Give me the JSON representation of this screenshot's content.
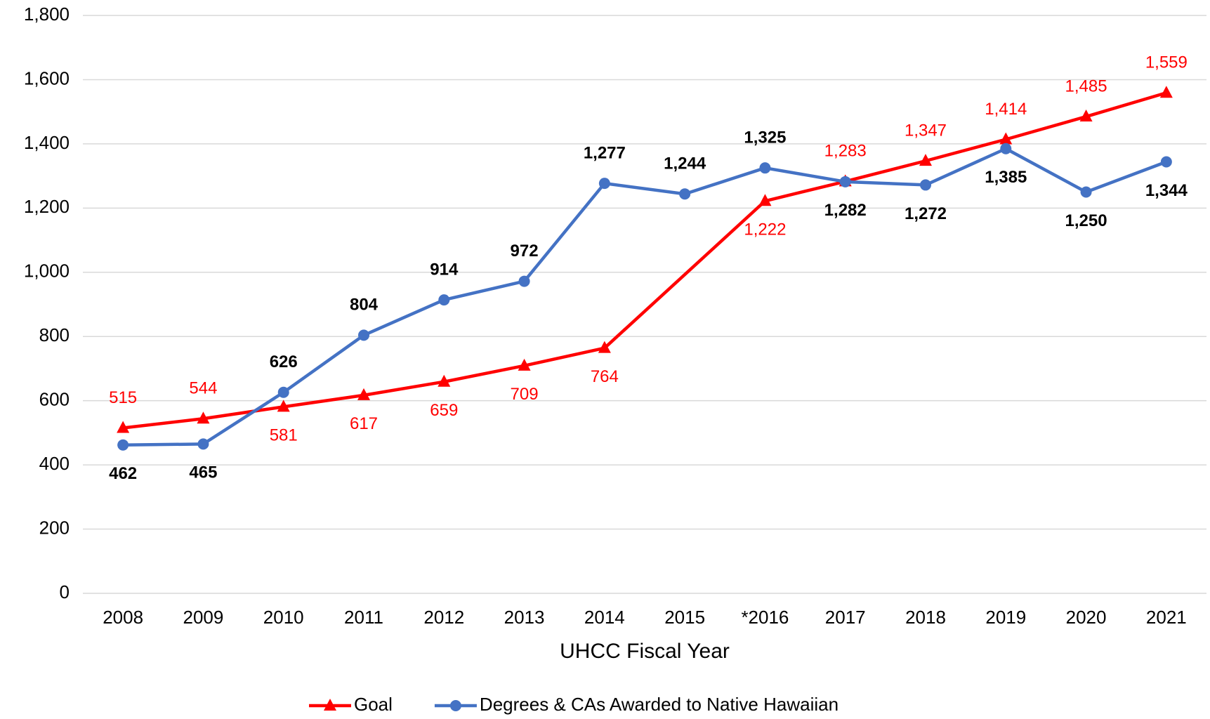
{
  "chart_data": {
    "type": "line",
    "x_label": "UHCC Fiscal Year",
    "categories": [
      "2008",
      "2009",
      "2010",
      "2011",
      "2012",
      "2013",
      "2014",
      "2015",
      "*2016",
      "2017",
      "2018",
      "2019",
      "2020",
      "2021"
    ],
    "series": [
      {
        "name": "Goal",
        "color": "#ff0000",
        "marker": "triangle",
        "values": [
          515,
          544,
          581,
          617,
          659,
          709,
          764,
          null,
          1222,
          1283,
          1347,
          1414,
          1485,
          1559
        ],
        "value_labels": [
          "515",
          "544",
          "581",
          "617",
          "659",
          "709",
          "764",
          null,
          "1,222",
          "1,283",
          "1,347",
          "1,414",
          "1,485",
          "1,559"
        ]
      },
      {
        "name": "Degrees & CAs Awarded to Native Hawaiian",
        "color": "#4472c4",
        "marker": "circle",
        "values": [
          462,
          465,
          626,
          804,
          914,
          972,
          1277,
          1244,
          1325,
          1282,
          1272,
          1385,
          1250,
          1344
        ],
        "value_labels": [
          "462",
          "465",
          "626",
          "804",
          "914",
          "972",
          "1,277",
          "1,244",
          "1,325",
          "1,282",
          "1,272",
          "1,385",
          "1,250",
          "1,344"
        ]
      }
    ],
    "ylim": [
      0,
      1800
    ],
    "yticks": [
      0,
      200,
      400,
      600,
      800,
      {
        "value": 1000,
        "label": "1,000"
      },
      {
        "value": 1200,
        "label": "1,200"
      },
      {
        "value": 1400,
        "label": "1,400"
      },
      {
        "value": 1600,
        "label": "1,600"
      },
      {
        "value": 1800,
        "label": "1,800"
      }
    ],
    "grid": true,
    "legend": "bottom"
  }
}
